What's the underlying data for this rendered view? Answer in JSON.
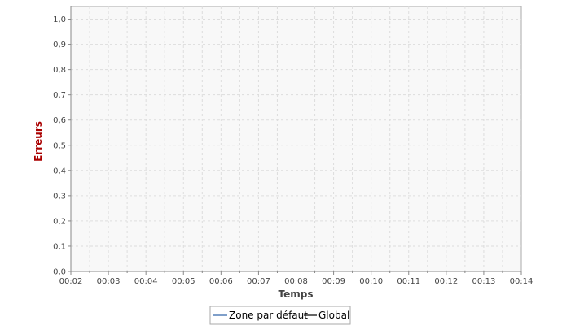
{
  "chart_data": {
    "type": "line",
    "xlabel": "Temps",
    "ylabel": "Erreurs",
    "x_ticks": [
      "00:02",
      "00:03",
      "00:04",
      "00:05",
      "00:06",
      "00:07",
      "00:08",
      "00:09",
      "00:10",
      "00:11",
      "00:12",
      "00:13",
      "00:14"
    ],
    "y_ticks": [
      "0,0",
      "0,1",
      "0,2",
      "0,3",
      "0,4",
      "0,5",
      "0,6",
      "0,7",
      "0,8",
      "0,9",
      "1,0"
    ],
    "ylim": [
      0,
      1.05
    ],
    "grid": true,
    "legend_position": "bottom",
    "series": [
      {
        "name": "Zone par défaut",
        "color": "#3366aa",
        "values": []
      },
      {
        "name": "Global",
        "color": "#000000",
        "values": []
      }
    ],
    "colors": {
      "plot_background": "#f8f8f8",
      "grid": "#dddddd",
      "axis": "#888888",
      "ylabel": "#aa0000",
      "xlabel": "#444444"
    }
  }
}
